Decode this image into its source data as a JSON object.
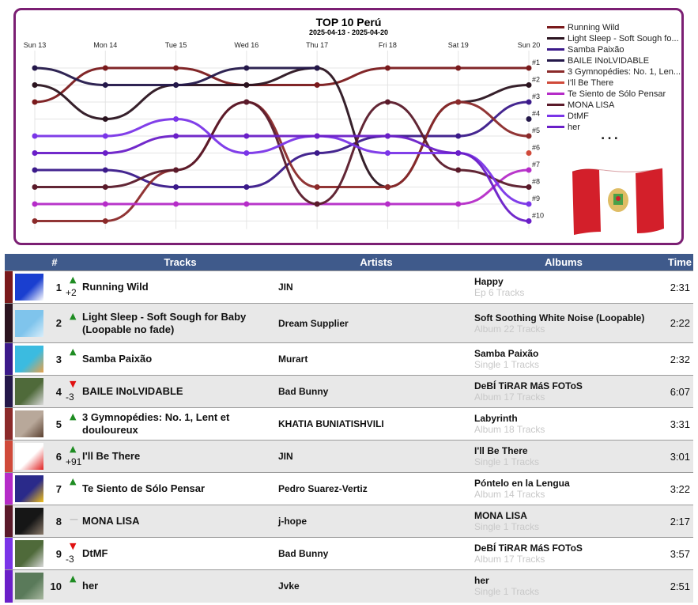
{
  "chart_data": {
    "type": "line",
    "title": "TOP 10 Perú",
    "subtitle": "2025-04-13 - 2025-04-20",
    "x": [
      "Sun 13",
      "Mon 14",
      "Tue 15",
      "Wed 16",
      "Thu 17",
      "Fri 18",
      "Sat 19",
      "Sun 20"
    ],
    "rank_labels": [
      "#1",
      "#2",
      "#3",
      "#4",
      "#5",
      "#6",
      "#7",
      "#8",
      "#9",
      "#10"
    ],
    "y_range": [
      1,
      10
    ],
    "y_inverted": true,
    "grid": true,
    "legend_position": "right",
    "series": [
      {
        "name": "Running Wild",
        "color": "#7a1a1c",
        "values": [
          3,
          1,
          1,
          2,
          2,
          1,
          1,
          1
        ]
      },
      {
        "name": "Light Sleep - Soft Sough fo...",
        "color": "#2b1420",
        "values": [
          2,
          4,
          2,
          2,
          1,
          8,
          3,
          2
        ]
      },
      {
        "name": "Samba Paixão",
        "color": "#3b1a8a",
        "values": [
          7,
          7,
          8,
          8,
          6,
          5,
          5,
          3
        ]
      },
      {
        "name": "BAILE INoLVIDABLE",
        "color": "#24184a",
        "values": [
          1,
          2,
          2,
          1,
          1,
          null,
          null,
          4
        ]
      },
      {
        "name": "3 Gymnopédies: No. 1, Len...",
        "color": "#8b2a2a",
        "values": [
          10,
          10,
          7,
          3,
          8,
          8,
          3,
          5
        ]
      },
      {
        "name": "I'll Be There",
        "color": "#d04a3a",
        "values": [
          null,
          null,
          null,
          null,
          null,
          null,
          null,
          6
        ]
      },
      {
        "name": "Te Siento de Sólo Pensar",
        "color": "#b52cc8",
        "values": [
          9,
          9,
          9,
          9,
          9,
          9,
          9,
          7
        ]
      },
      {
        "name": "MONA LISA",
        "color": "#5a1a2a",
        "values": [
          8,
          8,
          7,
          3,
          9,
          3,
          7,
          8
        ]
      },
      {
        "name": "DtMF",
        "color": "#7a35e8",
        "values": [
          5,
          5,
          4,
          6,
          5,
          6,
          6,
          9
        ]
      },
      {
        "name": "her",
        "color": "#6a1fc8",
        "values": [
          6,
          6,
          5,
          5,
          5,
          5,
          6,
          10
        ]
      }
    ],
    "legend_more": "..."
  },
  "table": {
    "headers": {
      "num": "#",
      "tracks": "Tracks",
      "artists": "Artists",
      "albums": "Albums",
      "time": "Time"
    },
    "rows": [
      {
        "num": "1",
        "dir": "up",
        "delta": "+2",
        "track": "Running Wild",
        "artist": "JIN",
        "album": "Happy",
        "album_sub": "Ep 6 Tracks",
        "time": "2:31",
        "color": "#7a1a1c",
        "art": [
          "#1a3fd0",
          "#ffffff"
        ]
      },
      {
        "num": "2",
        "dir": "up",
        "delta": "",
        "track": "Light Sleep - Soft Sough for Baby (Loopable no fade)",
        "artist": "Dream Supplier",
        "album": "Soft Soothing White Noise (Loopable)",
        "album_sub": "Album 22 Tracks",
        "time": "2:22",
        "color": "#2b1420",
        "art": [
          "#7fc4ec",
          "#d9eefa"
        ]
      },
      {
        "num": "3",
        "dir": "up",
        "delta": "",
        "track": "Samba Paixão",
        "artist": "Murart",
        "album": "Samba Paixão",
        "album_sub": "Single 1 Tracks",
        "time": "2:32",
        "color": "#3b1a8a",
        "art": [
          "#3bbbe0",
          "#e8a24a"
        ]
      },
      {
        "num": "4",
        "dir": "down",
        "delta": "-3",
        "track": "BAILE INoLVIDABLE",
        "artist": "Bad Bunny",
        "album": "DeBÍ TiRAR MáS FOToS",
        "album_sub": "Album 17 Tracks",
        "time": "6:07",
        "color": "#24184a",
        "art": [
          "#4f6a3a",
          "#d8d8d8"
        ]
      },
      {
        "num": "5",
        "dir": "up",
        "delta": "",
        "track": "3 Gymnopédies: No. 1, Lent et douloureux",
        "artist": "KHATIA BUNIATISHVILI",
        "album": "Labyrinth",
        "album_sub": "Album 18 Tracks",
        "time": "3:31",
        "color": "#8b2a2a",
        "art": [
          "#b8a89a",
          "#5a4030"
        ]
      },
      {
        "num": "6",
        "dir": "up",
        "delta": "+91",
        "track": "I'll Be There",
        "artist": "JIN",
        "album": "I'll Be There",
        "album_sub": "Single 1 Tracks",
        "time": "3:01",
        "color": "#d04a3a",
        "art": [
          "#ffffff",
          "#e02020"
        ]
      },
      {
        "num": "7",
        "dir": "up",
        "delta": "",
        "track": "Te Siento de Sólo Pensar",
        "artist": "Pedro Suarez-Vertiz",
        "album": "Póntelo en la Lengua",
        "album_sub": "Album 14 Tracks",
        "time": "3:22",
        "color": "#b52cc8",
        "art": [
          "#2a2a8a",
          "#f2c21a"
        ]
      },
      {
        "num": "8",
        "dir": "same",
        "delta": "",
        "track": "MONA LISA",
        "artist": "j-hope",
        "album": "MONA LISA",
        "album_sub": "Single 1 Tracks",
        "time": "2:17",
        "color": "#5a1a2a",
        "art": [
          "#161616",
          "#8a7a6a"
        ]
      },
      {
        "num": "9",
        "dir": "down",
        "delta": "-3",
        "track": "DtMF",
        "artist": "Bad Bunny",
        "album": "DeBÍ TiRAR MáS FOToS",
        "album_sub": "Album 17 Tracks",
        "time": "3:57",
        "color": "#7a35e8",
        "art": [
          "#4f6a3a",
          "#d8d8d8"
        ]
      },
      {
        "num": "10",
        "dir": "up",
        "delta": "",
        "track": "her",
        "artist": "Jvke",
        "album": "her",
        "album_sub": "Single 1 Tracks",
        "time": "2:51",
        "color": "#6a1fc8",
        "art": [
          "#5a7a5a",
          "#a8b8a0"
        ]
      }
    ]
  }
}
